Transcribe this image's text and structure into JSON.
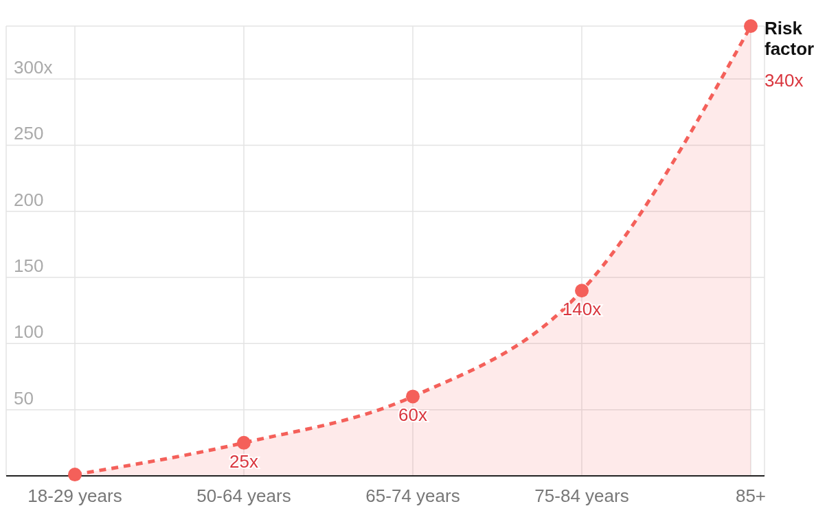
{
  "chart_data": {
    "type": "area",
    "categories": [
      "18-29 years",
      "50-64 years",
      "65-74 years",
      "75-84 years",
      "85+"
    ],
    "series": [
      {
        "name": "Risk factor",
        "color": "#f4605a",
        "values": [
          1,
          25,
          60,
          140,
          340
        ],
        "value_labels": [
          null,
          "25x",
          "60x",
          "140x",
          "340x"
        ]
      }
    ],
    "ylim": [
      0,
      340
    ],
    "yticks": [
      50,
      100,
      150,
      200,
      250,
      {
        "value": 300,
        "label": "300x"
      }
    ],
    "grid": true,
    "marker": "circle",
    "line_style": "dashed"
  }
}
